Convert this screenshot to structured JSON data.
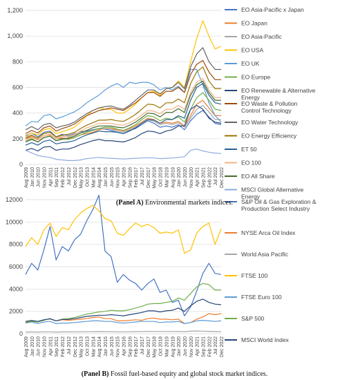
{
  "captions": {
    "panel_a_label": "(Panel A)",
    "panel_a_text": " Environmental markets indices.",
    "panel_b_label": "(Panel B)",
    "panel_b_text": " Fossil fuel-based equity and global stock market indices."
  },
  "chart_data": [
    {
      "type": "line",
      "title": "",
      "xlabel": "",
      "ylabel": "",
      "ylim": [
        0,
        1200
      ],
      "yticks": [
        "0",
        "200",
        "400",
        "600",
        "800",
        "1,000",
        "1,200"
      ],
      "grid": true,
      "legend_position": "right",
      "x": [
        "Aug 2009",
        "Jan 2010",
        "Jun 2010",
        "Nov 2010",
        "Apr 2011",
        "Sep 2011",
        "Feb 2012",
        "Jul 2012",
        "Dec 2012",
        "May 2013",
        "Oct 2013",
        "Mar 2014",
        "Aug 2014",
        "Jan 2015",
        "Jun 2015",
        "Nov 2015",
        "Apr 2016",
        "Sep 2016",
        "Feb 2017",
        "Jul 2017",
        "Dec 2017",
        "May 2018",
        "Oct 2018",
        "Mar 2019",
        "Aug 2019",
        "Jan 2020",
        "Jun 2020",
        "Nov 2020",
        "Apr 2021",
        "Sep 2021",
        "Feb 2022",
        "Jul 2022",
        "Dec 2022"
      ],
      "series": [
        {
          "name": "EO Asia-Pacific x Japan",
          "color": "#4472C4",
          "values": [
            225,
            245,
            215,
            250,
            260,
            215,
            235,
            225,
            240,
            255,
            260,
            270,
            280,
            275,
            265,
            250,
            240,
            265,
            280,
            310,
            340,
            320,
            290,
            300,
            290,
            310,
            270,
            340,
            390,
            420,
            370,
            320,
            310
          ]
        },
        {
          "name": "EO Japan",
          "color": "#ED7D31",
          "values": [
            200,
            215,
            195,
            225,
            230,
            200,
            205,
            200,
            210,
            230,
            240,
            250,
            270,
            280,
            280,
            270,
            260,
            280,
            300,
            330,
            360,
            350,
            320,
            330,
            320,
            335,
            300,
            380,
            470,
            500,
            440,
            380,
            380
          ]
        },
        {
          "name": "EO Asia-Pacific",
          "color": "#A5A5A5",
          "values": [
            215,
            230,
            205,
            240,
            250,
            210,
            225,
            215,
            230,
            245,
            255,
            265,
            280,
            280,
            275,
            260,
            250,
            270,
            290,
            320,
            350,
            335,
            310,
            320,
            310,
            325,
            290,
            360,
            430,
            460,
            410,
            350,
            350
          ]
        },
        {
          "name": "EO USA",
          "color": "#FFC000",
          "values": [
            220,
            245,
            230,
            270,
            280,
            240,
            255,
            270,
            290,
            330,
            380,
            420,
            440,
            430,
            430,
            400,
            400,
            430,
            470,
            520,
            560,
            570,
            540,
            590,
            600,
            650,
            600,
            800,
            980,
            1120,
            1000,
            900,
            920
          ]
        },
        {
          "name": "EO UK",
          "color": "#5B9BD5",
          "values": [
            300,
            335,
            330,
            380,
            390,
            355,
            370,
            390,
            410,
            440,
            480,
            510,
            540,
            580,
            610,
            630,
            600,
            640,
            630,
            640,
            640,
            620,
            580,
            600,
            580,
            610,
            560,
            740,
            740,
            620,
            480,
            380,
            330
          ]
        },
        {
          "name": "EO Europe",
          "color": "#70AD47",
          "values": [
            180,
            200,
            175,
            210,
            220,
            185,
            195,
            195,
            210,
            230,
            250,
            265,
            280,
            290,
            290,
            275,
            265,
            285,
            310,
            350,
            380,
            370,
            340,
            360,
            350,
            370,
            330,
            430,
            520,
            560,
            500,
            430,
            420
          ]
        },
        {
          "name": "EO Renewable & Alternative Energy",
          "color": "#264478",
          "values": [
            110,
            125,
            105,
            135,
            140,
            110,
            120,
            120,
            135,
            155,
            170,
            185,
            195,
            185,
            185,
            180,
            175,
            190,
            210,
            240,
            260,
            255,
            240,
            260,
            270,
            300,
            300,
            430,
            460,
            430,
            360,
            330,
            320
          ]
        },
        {
          "name": "EO Waste & Pollution Control Technology",
          "color": "#9E480E",
          "values": [
            240,
            265,
            245,
            285,
            300,
            260,
            280,
            295,
            315,
            350,
            380,
            400,
            420,
            430,
            440,
            430,
            420,
            450,
            480,
            520,
            560,
            560,
            530,
            570,
            570,
            600,
            560,
            700,
            780,
            810,
            720,
            660,
            660
          ]
        },
        {
          "name": "EO Water Technology",
          "color": "#636363",
          "values": [
            270,
            295,
            270,
            310,
            320,
            285,
            300,
            310,
            330,
            365,
            395,
            420,
            440,
            450,
            455,
            440,
            430,
            460,
            500,
            540,
            580,
            580,
            550,
            590,
            600,
            640,
            590,
            760,
            860,
            910,
            800,
            740,
            740
          ]
        },
        {
          "name": "EO Energy Efficiency",
          "color": "#997300",
          "values": [
            205,
            225,
            205,
            240,
            250,
            215,
            230,
            235,
            250,
            280,
            305,
            325,
            345,
            345,
            350,
            340,
            335,
            360,
            390,
            430,
            470,
            465,
            440,
            480,
            480,
            510,
            480,
            630,
            720,
            760,
            650,
            590,
            590
          ]
        },
        {
          "name": "ET 50",
          "color": "#255E91",
          "values": [
            150,
            170,
            150,
            180,
            190,
            160,
            170,
            175,
            185,
            210,
            230,
            245,
            260,
            255,
            255,
            250,
            240,
            260,
            285,
            320,
            350,
            345,
            320,
            350,
            350,
            380,
            360,
            500,
            600,
            630,
            540,
            480,
            470
          ]
        },
        {
          "name": "EO 100",
          "color": "#F4B183",
          "values": [
            190,
            210,
            190,
            225,
            235,
            200,
            215,
            220,
            235,
            260,
            285,
            300,
            320,
            320,
            320,
            310,
            305,
            325,
            350,
            385,
            420,
            415,
            395,
            430,
            430,
            460,
            430,
            560,
            640,
            670,
            580,
            520,
            520
          ]
        },
        {
          "name": "EO All Share",
          "color": "#43682B",
          "values": [
            175,
            195,
            175,
            210,
            220,
            185,
            200,
            205,
            220,
            245,
            265,
            285,
            300,
            300,
            300,
            290,
            285,
            305,
            330,
            365,
            400,
            395,
            370,
            405,
            405,
            435,
            405,
            540,
            620,
            650,
            560,
            500,
            500
          ]
        },
        {
          "name": "MSCI Global Alternative Energy",
          "color": "#8FAADC",
          "values": [
            110,
            90,
            70,
            60,
            55,
            40,
            35,
            30,
            30,
            35,
            45,
            50,
            55,
            50,
            48,
            45,
            42,
            45,
            48,
            50,
            52,
            50,
            45,
            48,
            50,
            55,
            60,
            110,
            120,
            105,
            95,
            88,
            85
          ]
        }
      ]
    },
    {
      "type": "line",
      "title": "",
      "xlabel": "",
      "ylabel": "",
      "ylim": [
        0,
        12000
      ],
      "yticks": [
        "0",
        "2000",
        "4000",
        "6000",
        "8000",
        "10000",
        "12000"
      ],
      "grid": true,
      "legend_position": "right",
      "x": [
        "Aug 2009",
        "Jan 2010",
        "Jun 2010",
        "Nov 2010",
        "Apr 2011",
        "Sep 2011",
        "Feb 2012",
        "Jul 2012",
        "Dec 2012",
        "May 2013",
        "Oct 2013",
        "Mar 2014",
        "Aug 2014",
        "Jan 2015",
        "Jun 2015",
        "Nov 2015",
        "Apr 2016",
        "Sep 2016",
        "Feb 2017",
        "Jul 2017",
        "Dec 2017",
        "May 2018",
        "Oct 2018",
        "Mar 2019",
        "Aug 2019",
        "Jan 2020",
        "Jun 2020",
        "Nov 2020",
        "Apr 2021",
        "Sep 2021",
        "Feb 2022",
        "Jul 2022",
        "Dec 2022"
      ],
      "series": [
        {
          "name": "S&P Oil & Gas Exploration & Production Select Industry",
          "color": "#4472C4",
          "values": [
            5300,
            6300,
            5700,
            7500,
            9600,
            6600,
            7800,
            7400,
            8400,
            8900,
            10100,
            11100,
            12400,
            7400,
            6900,
            4600,
            5300,
            4800,
            4500,
            3900,
            4500,
            4900,
            3700,
            3900,
            2800,
            3000,
            1600,
            2400,
            3800,
            5400,
            6300,
            5400,
            5300
          ]
        },
        {
          "name": "NYSE Arca Oil Index",
          "color": "#ED7D31",
          "values": [
            1050,
            1150,
            1050,
            1200,
            1350,
            1150,
            1250,
            1200,
            1250,
            1300,
            1350,
            1450,
            1500,
            1350,
            1350,
            1150,
            1150,
            1200,
            1250,
            1200,
            1350,
            1400,
            1300,
            1300,
            1250,
            1300,
            900,
            1000,
            1300,
            1500,
            1800,
            1700,
            1800
          ]
        },
        {
          "name": "World Asia Pacific",
          "color": "#A5A5A5",
          "values": [
            150,
            160,
            150,
            170,
            170,
            150,
            160,
            160,
            165,
            175,
            180,
            185,
            190,
            185,
            180,
            170,
            165,
            175,
            185,
            195,
            210,
            205,
            195,
            200,
            195,
            205,
            185,
            220,
            240,
            230,
            210,
            190,
            190
          ]
        },
        {
          "name": "FTSE 100",
          "color": "#FFC000",
          "values": [
            7800,
            8600,
            8000,
            9300,
            9900,
            8700,
            9500,
            9300,
            10200,
            10800,
            11200,
            11500,
            11000,
            10300,
            10100,
            9000,
            8800,
            9400,
            9900,
            9600,
            9800,
            9500,
            9000,
            9100,
            9000,
            9300,
            7200,
            7500,
            9000,
            9600,
            9900,
            8000,
            9400
          ]
        },
        {
          "name": "FTSE Euro 100",
          "color": "#5B9BD5",
          "values": [
            950,
            1050,
            900,
            1050,
            1100,
            900,
            950,
            950,
            1000,
            1050,
            1100,
            1150,
            1150,
            1100,
            1100,
            1000,
            950,
            1000,
            1050,
            1100,
            1100,
            1100,
            1000,
            1050,
            1050,
            1100,
            900,
            1000,
            1150,
            1200,
            1150,
            1100,
            1150
          ]
        },
        {
          "name": "S&P 500",
          "color": "#70AD47",
          "values": [
            1000,
            1100,
            1050,
            1200,
            1350,
            1150,
            1300,
            1350,
            1450,
            1600,
            1750,
            1850,
            1950,
            2000,
            2100,
            2050,
            2050,
            2150,
            2300,
            2450,
            2650,
            2700,
            2700,
            2800,
            2900,
            3200,
            3000,
            3600,
            4200,
            4500,
            4400,
            3900,
            3900
          ]
        },
        {
          "name": "MSCI World Index",
          "color": "#264478",
          "values": [
            1100,
            1180,
            1100,
            1250,
            1330,
            1150,
            1280,
            1280,
            1350,
            1450,
            1550,
            1600,
            1650,
            1650,
            1700,
            1650,
            1600,
            1700,
            1800,
            1900,
            2050,
            2050,
            1950,
            2050,
            2100,
            2300,
            2000,
            2500,
            2900,
            3100,
            2800,
            2650,
            2600
          ]
        }
      ]
    }
  ]
}
